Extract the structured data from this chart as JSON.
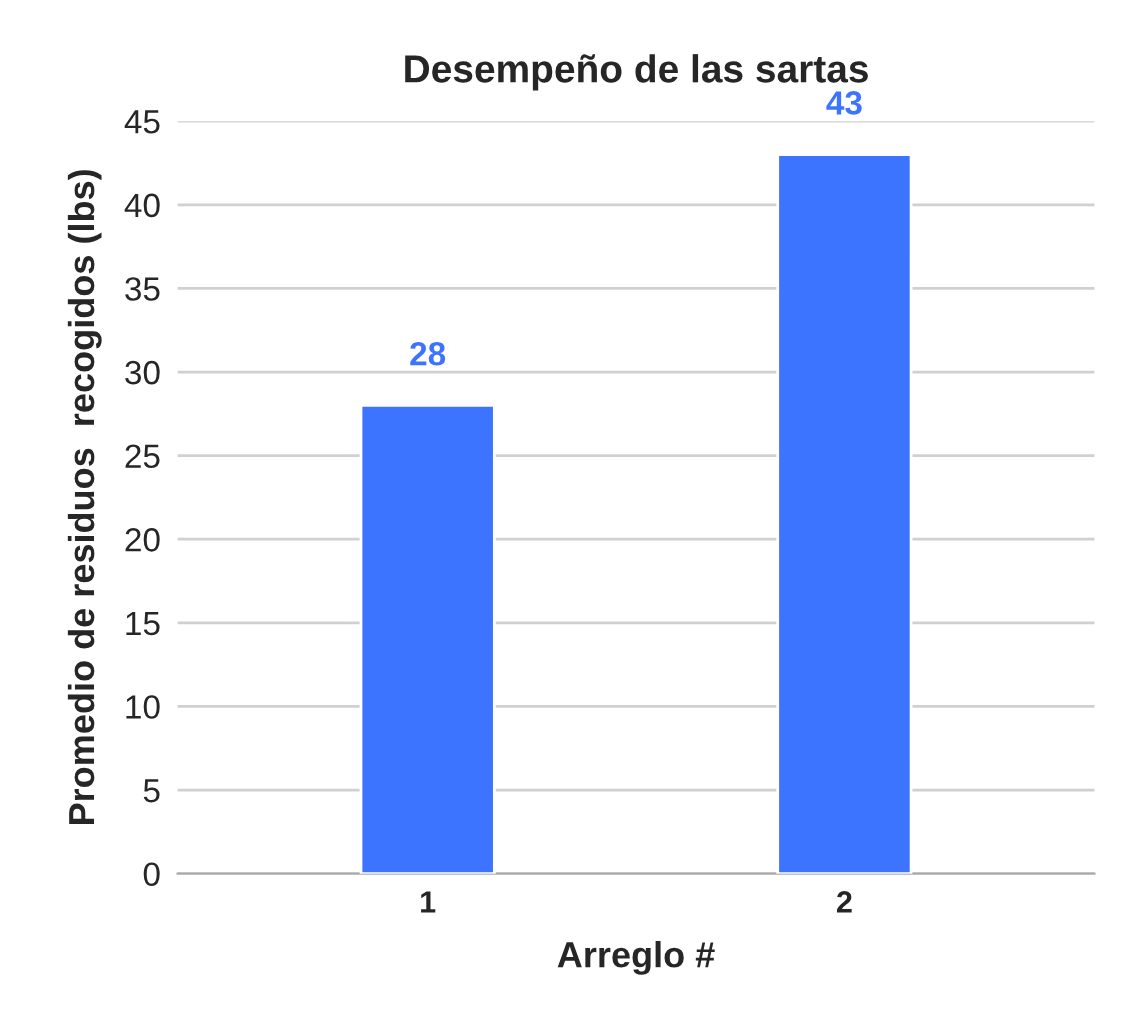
{
  "chart_data": {
    "type": "bar",
    "title": "Desempeño de las sartas",
    "xlabel": "Arreglo #",
    "ylabel": "Promedio de residuos  recogidos (lbs)",
    "categories": [
      "1",
      "2"
    ],
    "series": [
      {
        "color": "#3d74ff",
        "values": [
          28,
          43
        ]
      }
    ],
    "ylim": [
      0,
      45
    ],
    "yticks": [
      0,
      5,
      10,
      15,
      20,
      25,
      30,
      35,
      40,
      45
    ],
    "grid": "y",
    "data_labels": true
  }
}
